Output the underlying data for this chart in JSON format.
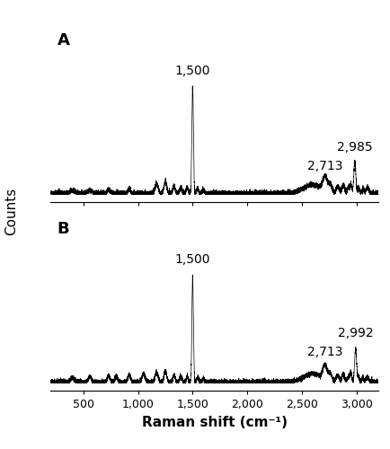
{
  "title": "",
  "xlabel": "Raman shift (cm⁻¹)",
  "ylabel": "Counts",
  "xmin": 200,
  "xmax": 3200,
  "panel_A_label": "A",
  "panel_B_label": "B",
  "peak_A_1": {
    "x": 1500,
    "label": "1,500"
  },
  "peak_A_2": {
    "x": 2713,
    "label": "2,713"
  },
  "peak_A_3": {
    "x": 2985,
    "label": "2,985"
  },
  "peak_B_1": {
    "x": 1500,
    "label": "1,500"
  },
  "peak_B_2": {
    "x": 2713,
    "label": "2,713"
  },
  "peak_B_3": {
    "x": 2992,
    "label": "2,992"
  },
  "line_color": "#000000",
  "bg_color": "#ffffff",
  "xticks": [
    500,
    1000,
    1500,
    2000,
    2500,
    3000
  ],
  "xtick_labels": [
    "500",
    "1,000",
    "1,500",
    "2,000",
    "2,500",
    "3,000"
  ]
}
